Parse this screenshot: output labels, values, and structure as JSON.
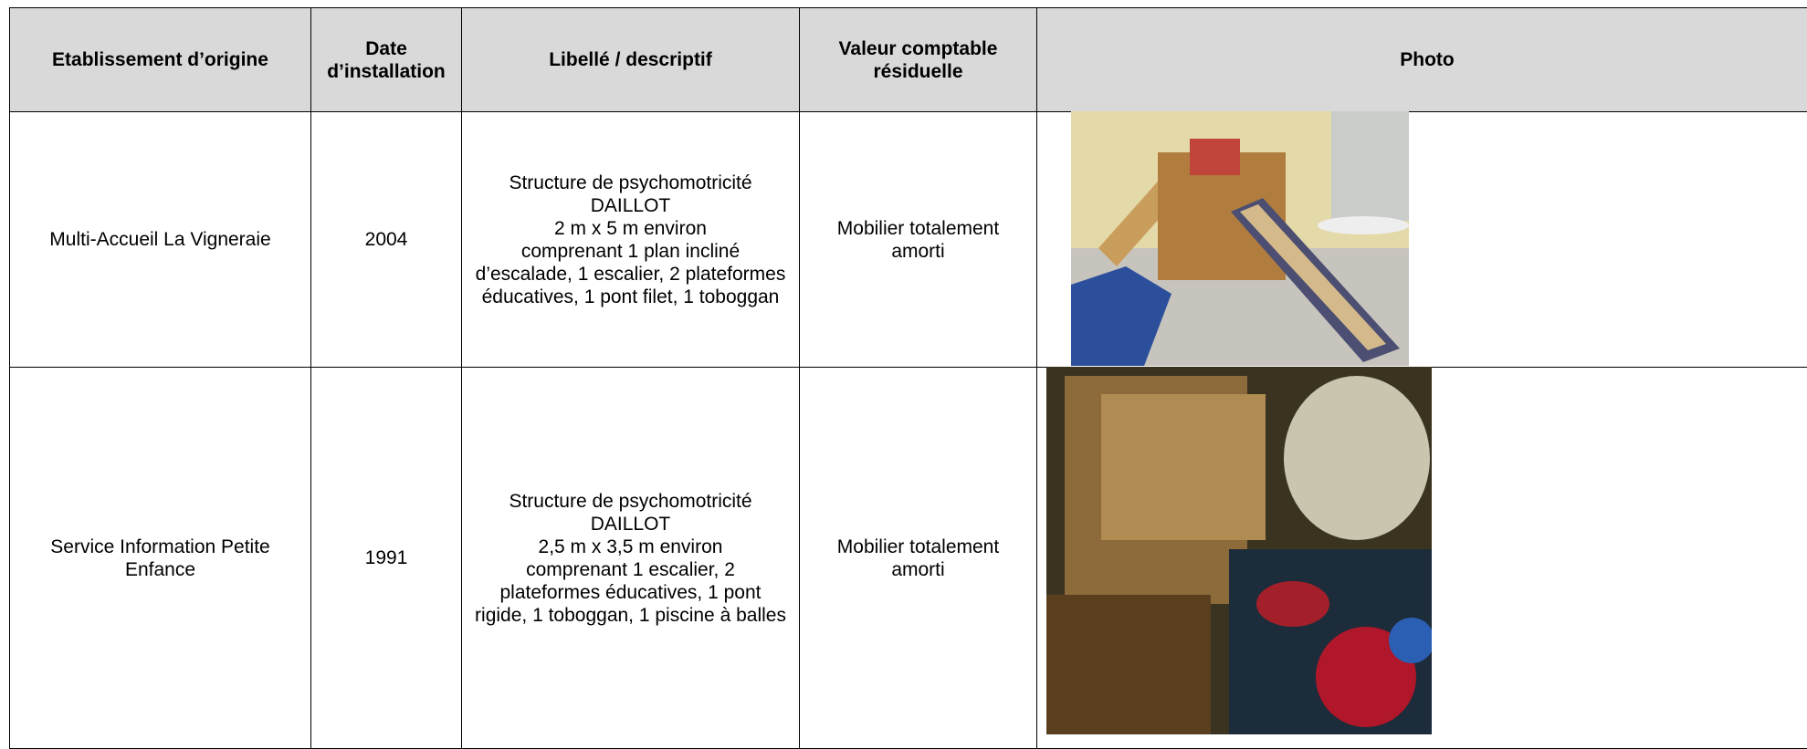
{
  "table": {
    "header": [
      [
        "Etablissement d’origine"
      ],
      [
        "Date",
        "d’installation"
      ],
      [
        "Libellé / descriptif"
      ],
      [
        "Valeur comptable",
        "résiduelle"
      ],
      [
        "Photo"
      ]
    ],
    "rows": [
      [
        [
          "Multi-Accueil La Vigneraie"
        ],
        [
          "2004"
        ],
        [
          "Structure de psychomotricité",
          "DAILLOT",
          "2 m x 5 m environ",
          "comprenant 1 plan incliné",
          "d’escalade, 1 escalier, 2 plateformes",
          "éducatives, 1 pont filet, 1 toboggan"
        ],
        [
          "Mobilier totalement",
          "amorti"
        ]
      ],
      [
        [
          "Service Information Petite",
          "Enfance"
        ],
        [
          "1991"
        ],
        [
          "Structure de psychomotricité",
          "DAILLOT",
          "2,5 m x 3,5 m environ",
          "comprenant 1 escalier, 2",
          "plateformes éducatives, 1 pont",
          "rigide, 1 toboggan, 1 piscine à balles"
        ],
        [
          "Mobilier totalement",
          "amorti"
        ]
      ]
    ]
  }
}
